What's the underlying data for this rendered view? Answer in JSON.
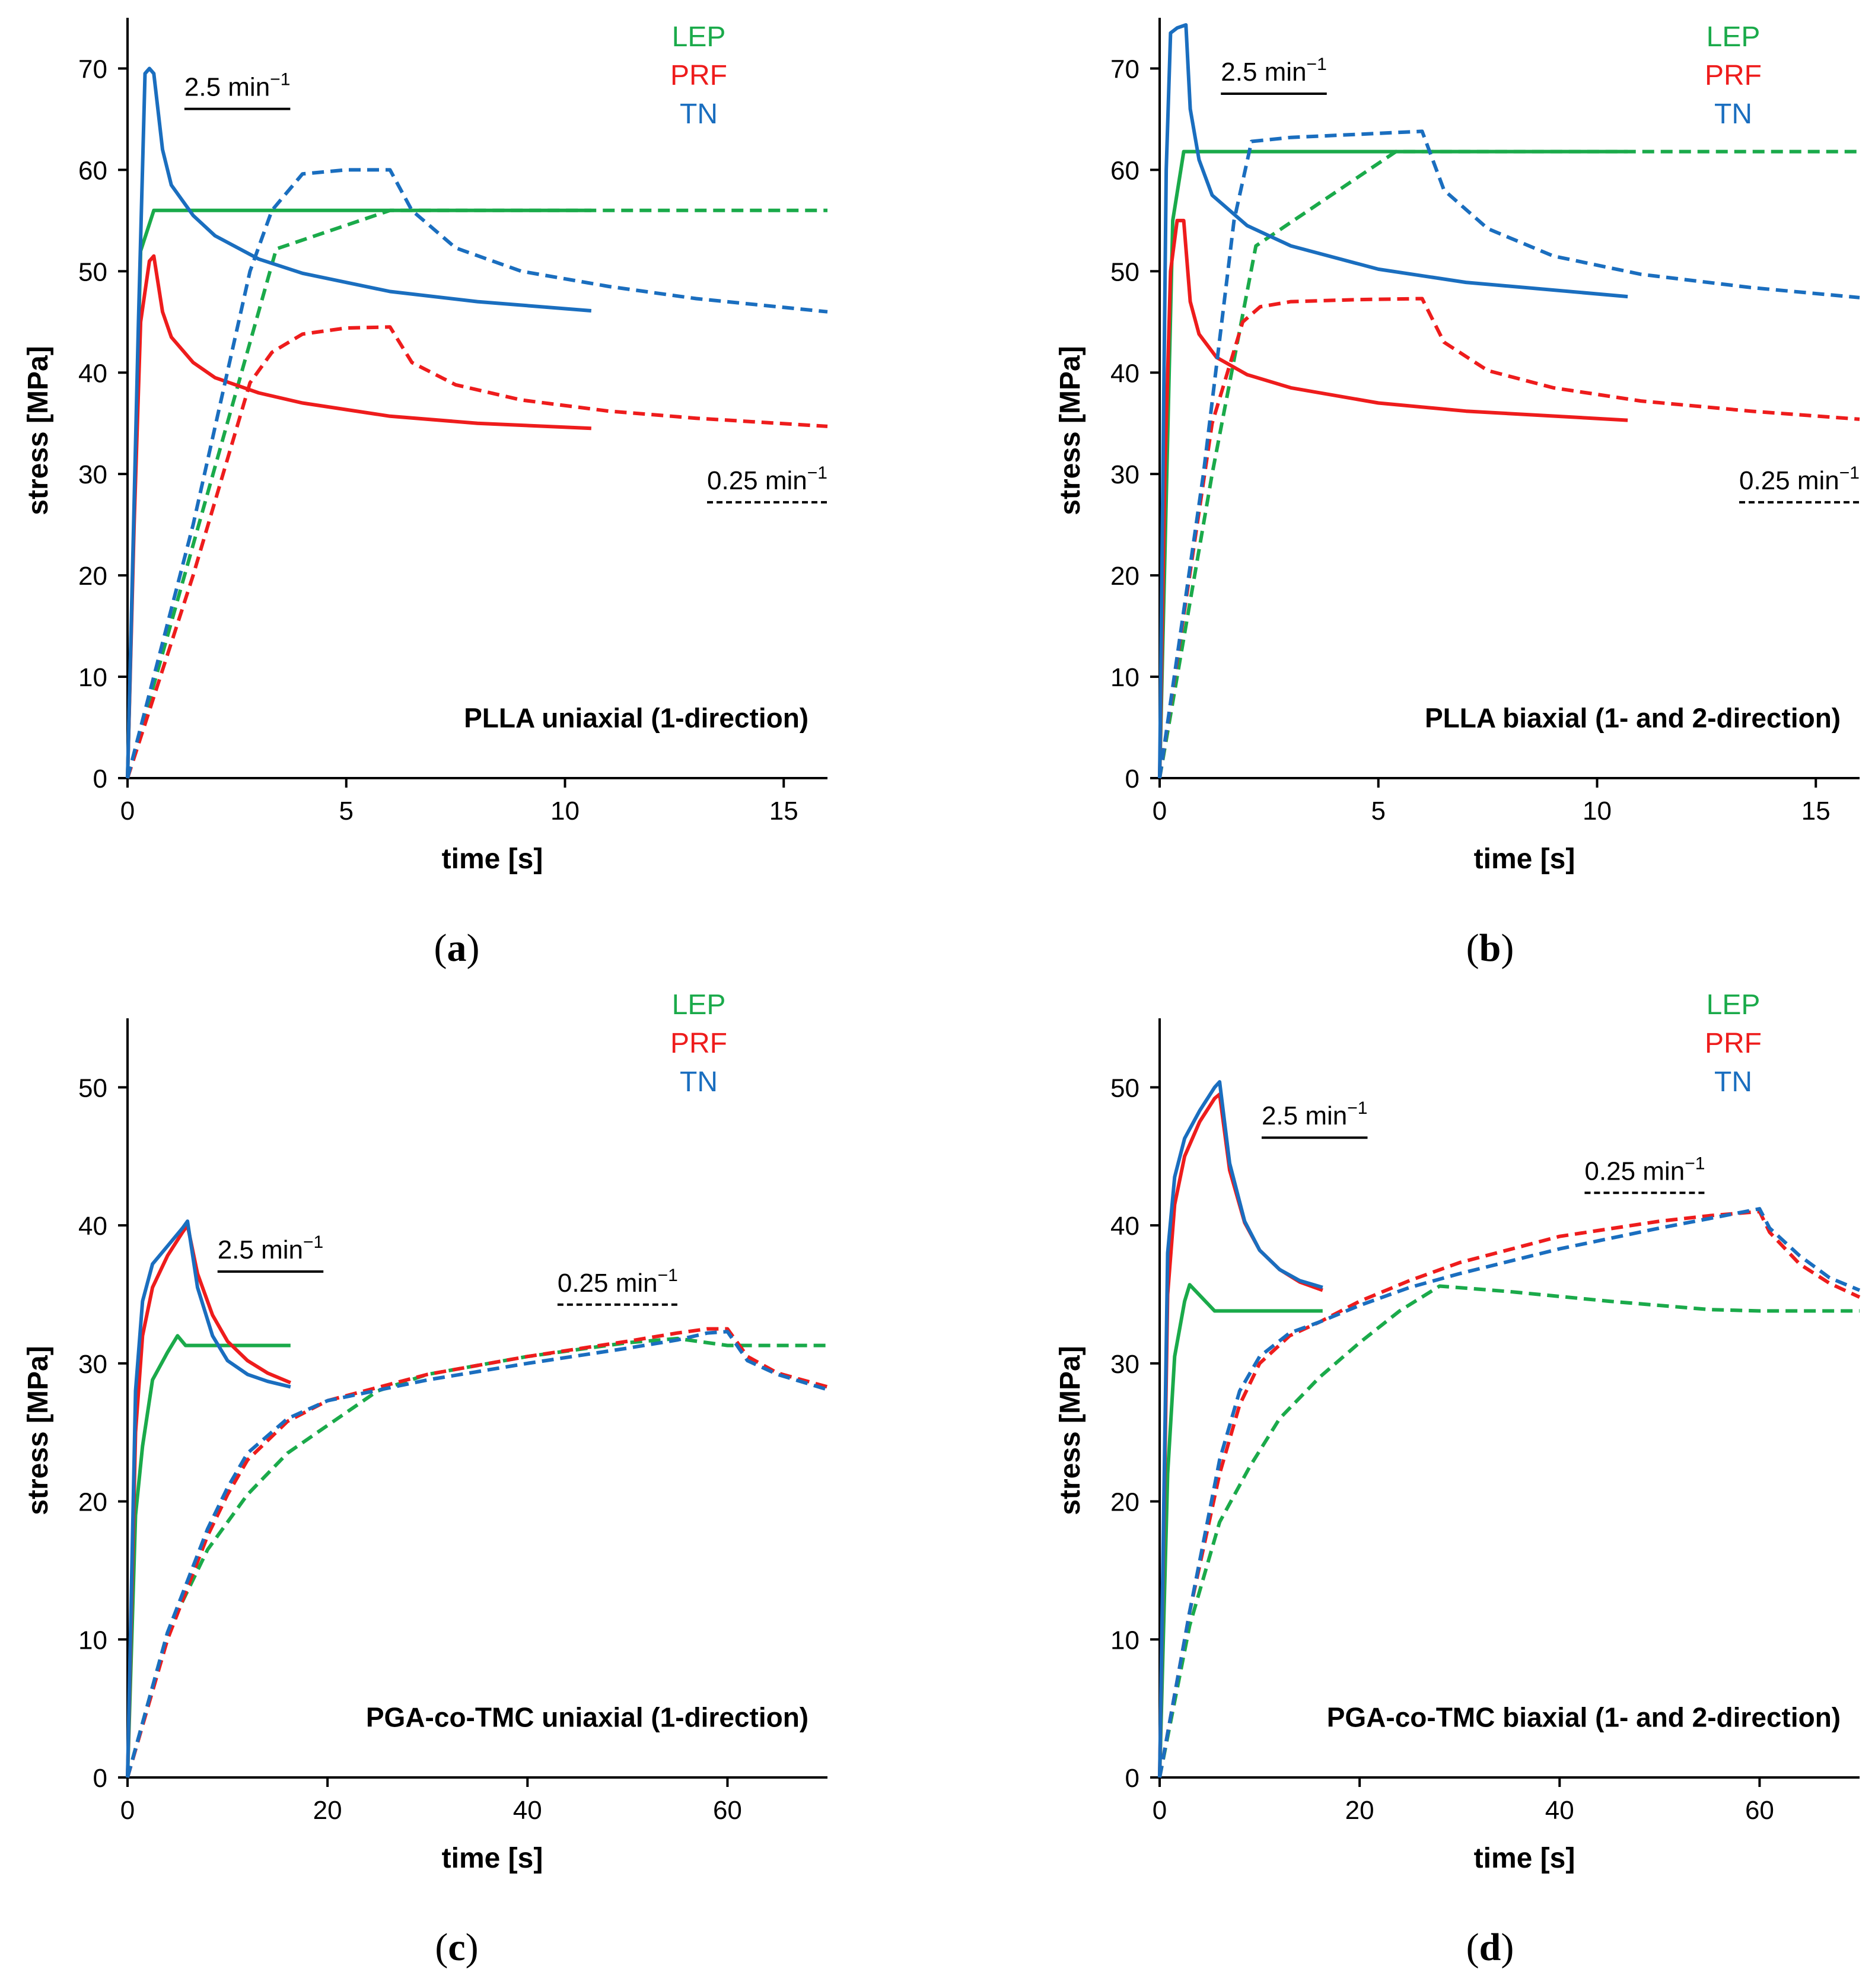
{
  "figure": {
    "colors": {
      "LEP": "#1aaa4a",
      "PRF": "#ee1c1c",
      "TN": "#1a6ebf",
      "axis": "#000000"
    },
    "panels": [
      {
        "id": "a",
        "caption_letter": "a",
        "chart_title": "PLLA uniaxial (1-direction)",
        "xlabel": "time [s]",
        "ylabel": "stress [MPa]",
        "xlim": [
          0,
          16
        ],
        "ylim": [
          0,
          75
        ],
        "xticks": [
          0,
          5,
          10,
          15
        ],
        "yticks": [
          0,
          10,
          20,
          30,
          40,
          50,
          60,
          70
        ],
        "legend": [
          "LEP",
          "PRF",
          "TN"
        ],
        "rate_fast": {
          "label_base": "2.5 min",
          "label_sup": "−1",
          "x": 1.3,
          "y": 67.3,
          "align": "left",
          "style": "solid"
        },
        "rate_slow": {
          "label_base": "0.25 min",
          "label_sup": "−1",
          "x": 16,
          "y": 28.5,
          "align": "right",
          "style": "dashed"
        },
        "series": [
          {
            "model": "LEP",
            "rate": "2.5 min−1",
            "style": "solid",
            "x": [
              0,
              0.3,
              0.6,
              10.6
            ],
            "y": [
              0,
              52,
              56,
              56
            ]
          },
          {
            "model": "LEP",
            "rate": "0.25 min−1",
            "style": "dashed",
            "x": [
              0,
              3.4,
              6.0,
              16
            ],
            "y": [
              0,
              52.2,
              56,
              56
            ]
          },
          {
            "model": "PRF",
            "rate": "2.5 min−1",
            "style": "solid",
            "x": [
              0,
              0.15,
              0.3,
              0.5,
              0.6,
              0.8,
              1.0,
              1.5,
              2.0,
              3.0,
              4.0,
              6.0,
              8.0,
              10.6
            ],
            "y": [
              0,
              25,
              45,
              51,
              51.5,
              46,
              43.5,
              41,
              39.5,
              38,
              37,
              35.7,
              35.0,
              34.5
            ]
          },
          {
            "model": "PRF",
            "rate": "0.25 min−1",
            "style": "dashed",
            "x": [
              0,
              1.5,
              2.8,
              3.3,
              4.0,
              5.0,
              6.0,
              6.5,
              7.5,
              9.0,
              11.0,
              13.0,
              16.0
            ],
            "y": [
              0,
              20,
              39,
              42,
              43.8,
              44.4,
              44.5,
              41,
              38.8,
              37.3,
              36.2,
              35.5,
              34.7
            ]
          },
          {
            "model": "TN",
            "rate": "2.5 min−1",
            "style": "solid",
            "x": [
              0,
              0.25,
              0.4,
              0.5,
              0.6,
              0.8,
              1.0,
              1.5,
              2.0,
              3.0,
              4.0,
              6.0,
              8.0,
              10.6
            ],
            "y": [
              0,
              45,
              69.5,
              70,
              69.5,
              62,
              58.5,
              55.5,
              53.5,
              51.2,
              49.8,
              48.0,
              47.0,
              46.1
            ]
          },
          {
            "model": "TN",
            "rate": "0.25 min−1",
            "style": "dashed",
            "x": [
              0,
              1.5,
              2.8,
              3.3,
              4.0,
              5.0,
              6.0,
              6.5,
              7.5,
              9.0,
              11.0,
              13.0,
              16.0
            ],
            "y": [
              0,
              25,
              50,
              56,
              59.6,
              60,
              60,
              56,
              52.3,
              50.0,
              48.5,
              47.3,
              46.0
            ]
          }
        ]
      },
      {
        "id": "b",
        "caption_letter": "b",
        "chart_title": "PLLA biaxial (1- and 2-direction)",
        "xlabel": "time [s]",
        "ylabel": "stress [MPa]",
        "xlim": [
          0,
          16
        ],
        "ylim": [
          0,
          75
        ],
        "xticks": [
          0,
          5,
          10,
          15
        ],
        "yticks": [
          0,
          10,
          20,
          30,
          40,
          50,
          60,
          70
        ],
        "legend": [
          "LEP",
          "PRF",
          "TN"
        ],
        "rate_fast": {
          "label_base": "2.5 min",
          "label_sup": "−1",
          "x": 1.4,
          "y": 68.8,
          "align": "left",
          "style": "solid"
        },
        "rate_slow": {
          "label_base": "0.25 min",
          "label_sup": "−1",
          "x": 16,
          "y": 28.5,
          "align": "right",
          "style": "dashed"
        },
        "series": [
          {
            "model": "LEP",
            "rate": "2.5 min−1",
            "style": "solid",
            "x": [
              0,
              0.3,
              0.55,
              10.7
            ],
            "y": [
              0,
              55,
              61.8,
              61.8
            ]
          },
          {
            "model": "LEP",
            "rate": "0.25 min−1",
            "style": "dashed",
            "x": [
              0,
              1.2,
              2.2,
              5.4,
              5.8,
              16
            ],
            "y": [
              0,
              30,
              52.5,
              61.8,
              61.8,
              61.8
            ]
          },
          {
            "model": "PRF",
            "rate": "2.5 min−1",
            "style": "solid",
            "x": [
              0,
              0.12,
              0.25,
              0.4,
              0.55,
              0.7,
              0.9,
              1.3,
              2.0,
              3.0,
              5.0,
              7.0,
              10.7
            ],
            "y": [
              0,
              30,
              50,
              55,
              55,
              47,
              43.8,
              41.5,
              39.8,
              38.5,
              37,
              36.2,
              35.3
            ]
          },
          {
            "model": "PRF",
            "rate": "0.25 min−1",
            "style": "dashed",
            "x": [
              0,
              1.2,
              1.9,
              2.3,
              3.0,
              4.5,
              6.0,
              6.5,
              7.5,
              9.0,
              11.0,
              13.5,
              16.0
            ],
            "y": [
              0,
              35,
              45,
              46.5,
              47,
              47.2,
              47.3,
              43,
              40.2,
              38.5,
              37.2,
              36.2,
              35.4
            ]
          },
          {
            "model": "TN",
            "rate": "2.5 min−1",
            "style": "solid",
            "x": [
              0,
              0.15,
              0.25,
              0.4,
              0.6,
              0.7,
              0.9,
              1.2,
              2.0,
              3.0,
              5.0,
              7.0,
              10.7
            ],
            "y": [
              0,
              60,
              73.5,
              74,
              74.3,
              66,
              61,
              57.5,
              54.5,
              52.5,
              50.2,
              48.9,
              47.5
            ]
          },
          {
            "model": "TN",
            "rate": "0.25 min−1",
            "style": "dashed",
            "x": [
              0,
              1.0,
              1.7,
              2.1,
              3.0,
              4.5,
              6.0,
              6.5,
              7.5,
              9.0,
              11.0,
              13.5,
              16.0
            ],
            "y": [
              0,
              30,
              55,
              62.8,
              63.2,
              63.5,
              63.8,
              58,
              54.2,
              51.5,
              49.7,
              48.4,
              47.4
            ]
          }
        ]
      },
      {
        "id": "c",
        "caption_letter": "c",
        "chart_title": "PGA-co-TMC uniaxial (1-direction)",
        "xlabel": "time [s]",
        "ylabel": "stress [MPa]",
        "xlim": [
          0,
          70
        ],
        "ylim": [
          0,
          55
        ],
        "xticks": [
          0,
          20,
          40,
          60
        ],
        "yticks": [
          0,
          10,
          20,
          30,
          40,
          50
        ],
        "legend": [
          "LEP",
          "PRF",
          "TN"
        ],
        "rate_fast": {
          "label_base": "2.5 min",
          "label_sup": "−1",
          "x": 9,
          "y": 37.6,
          "align": "left",
          "style": "solid"
        },
        "rate_slow": {
          "label_base": "0.25 min",
          "label_sup": "−1",
          "x": 43,
          "y": 35.2,
          "align": "left",
          "style": "dashed"
        },
        "series": [
          {
            "model": "LEP",
            "rate": "2.5 min−1",
            "style": "solid",
            "x": [
              0,
              0.8,
              1.5,
              2.5,
              4.0,
              5.0,
              5.8,
              16.3
            ],
            "y": [
              0,
              19,
              24,
              28.8,
              30.8,
              32,
              31.3,
              31.3
            ]
          },
          {
            "model": "LEP",
            "rate": "0.25 min−1",
            "style": "dashed",
            "x": [
              0,
              4,
              8,
              12,
              16,
              20,
              25,
              30,
              40,
              50,
              55,
              60,
              70
            ],
            "y": [
              0,
              10.5,
              16.5,
              20.5,
              23.5,
              25.5,
              28,
              29.2,
              30.5,
              31.5,
              31.8,
              31.3,
              31.3
            ]
          },
          {
            "model": "PRF",
            "rate": "2.5 min−1",
            "style": "solid",
            "x": [
              0,
              0.8,
              1.5,
              2.5,
              4.0,
              5.5,
              6.0,
              7.0,
              8.5,
              10.0,
              12.0,
              14.0,
              16.3
            ],
            "y": [
              0,
              25,
              32,
              35.5,
              37.8,
              39.5,
              40,
              36.5,
              33.5,
              31.6,
              30.2,
              29.3,
              28.6
            ]
          },
          {
            "model": "PRF",
            "rate": "0.25 min−1",
            "style": "dashed",
            "x": [
              0,
              4,
              8,
              10,
              12,
              16,
              20,
              30,
              40,
              50,
              55,
              58,
              60,
              62,
              65,
              70
            ],
            "y": [
              0,
              10,
              17.5,
              20.5,
              23,
              25.8,
              27.3,
              29.2,
              30.5,
              31.6,
              32.2,
              32.5,
              32.5,
              30.5,
              29.3,
              28.3
            ]
          },
          {
            "model": "TN",
            "rate": "2.5 min−1",
            "style": "solid",
            "x": [
              0,
              0.8,
              1.5,
              2.5,
              4.0,
              5.5,
              6.0,
              7.0,
              8.5,
              10.0,
              12.0,
              14.0,
              16.3
            ],
            "y": [
              0,
              28,
              34.5,
              37.2,
              38.5,
              39.8,
              40.3,
              35.5,
              32,
              30.2,
              29.2,
              28.7,
              28.3
            ]
          },
          {
            "model": "TN",
            "rate": "0.25 min−1",
            "style": "dashed",
            "x": [
              0,
              4,
              8,
              10,
              12,
              16,
              20,
              30,
              40,
              50,
              55,
              58,
              60,
              62,
              65,
              70
            ],
            "y": [
              0,
              10.5,
              18,
              21,
              23.5,
              26,
              27.3,
              28.8,
              30,
              31.1,
              31.7,
              32.2,
              32.3,
              30.2,
              29.2,
              28.1
            ]
          }
        ]
      },
      {
        "id": "d",
        "caption_letter": "d",
        "chart_title": "PGA-co-TMC biaxial (1- and 2-direction)",
        "xlabel": "time [s]",
        "ylabel": "stress [MPa]",
        "xlim": [
          0,
          70
        ],
        "ylim": [
          0,
          55
        ],
        "xticks": [
          0,
          20,
          40,
          60
        ],
        "yticks": [
          0,
          10,
          20,
          30,
          40,
          50
        ],
        "legend": [
          "LEP",
          "PRF",
          "TN"
        ],
        "rate_fast": {
          "label_base": "2.5 min",
          "label_sup": "−1",
          "x": 10.2,
          "y": 47.3,
          "align": "left",
          "style": "solid"
        },
        "rate_slow": {
          "label_base": "0.25 min",
          "label_sup": "−1",
          "x": 42.5,
          "y": 43.3,
          "align": "left",
          "style": "dashed"
        },
        "series": [
          {
            "model": "LEP",
            "rate": "2.5 min−1",
            "style": "solid",
            "x": [
              0,
              0.8,
              1.5,
              2.5,
              3.0,
              5.5,
              16.3
            ],
            "y": [
              0,
              22,
              30.5,
              34.5,
              35.7,
              33.8,
              33.8
            ]
          },
          {
            "model": "LEP",
            "rate": "0.25 min−1",
            "style": "dashed",
            "x": [
              0,
              3,
              6,
              9,
              12,
              16,
              20,
              24,
              28,
              35,
              45,
              55,
              60,
              70
            ],
            "y": [
              0,
              11,
              18.5,
              22.5,
              26,
              29,
              31.5,
              33.8,
              35.6,
              35.2,
              34.5,
              33.9,
              33.8,
              33.8
            ]
          },
          {
            "model": "PRF",
            "rate": "2.5 min−1",
            "style": "solid",
            "x": [
              0,
              0.8,
              1.5,
              2.5,
              4.0,
              5.5,
              6.0,
              7.0,
              8.5,
              10.0,
              12.0,
              14.0,
              16.3
            ],
            "y": [
              0,
              35,
              41.5,
              45,
              47.5,
              49.2,
              49.5,
              44,
              40.2,
              38.2,
              36.8,
              35.9,
              35.3
            ]
          },
          {
            "model": "PRF",
            "rate": "0.25 min−1",
            "style": "dashed",
            "x": [
              0,
              3,
              6,
              8,
              10,
              13,
              16,
              20,
              25,
              30,
              40,
              50,
              55,
              60,
              61,
              64,
              67,
              70
            ],
            "y": [
              0,
              12,
              22,
              27,
              30,
              32,
              33,
              34.5,
              36,
              37.3,
              39.2,
              40.3,
              40.7,
              41,
              39.5,
              37.2,
              35.8,
              34.8
            ]
          },
          {
            "model": "TN",
            "rate": "2.5 min−1",
            "style": "solid",
            "x": [
              0,
              0.8,
              1.5,
              2.5,
              4.0,
              5.5,
              6.0,
              7.0,
              8.5,
              10.0,
              12.0,
              14.0,
              16.3
            ],
            "y": [
              0,
              38,
              43.5,
              46.3,
              48.3,
              50,
              50.4,
              44.5,
              40.3,
              38.2,
              36.8,
              36,
              35.5
            ]
          },
          {
            "model": "TN",
            "rate": "0.25 min−1",
            "style": "dashed",
            "x": [
              0,
              3,
              6,
              8,
              10,
              13,
              16,
              20,
              25,
              30,
              40,
              50,
              55,
              60,
              61,
              64,
              67,
              70
            ],
            "y": [
              0,
              12,
              23,
              28,
              30.5,
              32.2,
              33,
              34.2,
              35.5,
              36.5,
              38.3,
              39.8,
              40.5,
              41.2,
              39.8,
              37.8,
              36.2,
              35.3
            ]
          }
        ]
      }
    ]
  }
}
